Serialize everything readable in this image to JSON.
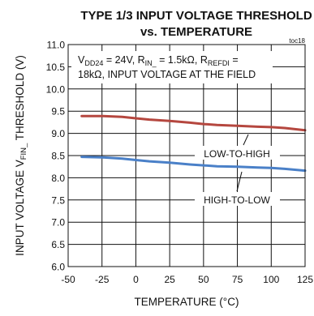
{
  "chart_data": {
    "type": "line",
    "title_line1": "TYPE 1/3 INPUT VOLTAGE THRESHOLD",
    "title_line2": "vs. TEMPERATURE",
    "figure_id": "toc18",
    "annotation": {
      "line1": {
        "v": "V",
        "v_sub": "DD24",
        "mid1": " = 24V, R",
        "r_sub": "IN_",
        "mid2": " = 1.5kΩ, R",
        "rf_sub": "REFDI",
        "end": " ="
      },
      "line2": "18kΩ, INPUT VOLTAGE AT THE FIELD"
    },
    "xlabel": "TEMPERATURE (°C)",
    "ylabel": {
      "pre": "INPUT VOLTAGE V",
      "sub": "FIN_",
      "post": " THRESHOLD (V)"
    },
    "xlim": [
      -50,
      125
    ],
    "ylim": [
      6.0,
      11.0
    ],
    "x_ticks": [
      "-50",
      "-25",
      "0",
      "25",
      "50",
      "75",
      "100",
      "125"
    ],
    "y_ticks": [
      "6.0",
      "6.5",
      "7.0",
      "7.5",
      "8.0",
      "8.5",
      "9.0",
      "9.5",
      "10.0",
      "10.5",
      "11.0"
    ],
    "grid": true,
    "series": [
      {
        "name": "LOW-TO-HIGH",
        "color": "#b5473f",
        "x": [
          -40,
          -25,
          -10,
          0,
          10,
          25,
          40,
          50,
          60,
          75,
          90,
          100,
          110,
          125
        ],
        "y": [
          9.39,
          9.39,
          9.37,
          9.34,
          9.31,
          9.28,
          9.24,
          9.21,
          9.19,
          9.17,
          9.15,
          9.14,
          9.12,
          9.07
        ]
      },
      {
        "name": "HIGH-TO-LOW",
        "color": "#4a80c8",
        "x": [
          -40,
          -25,
          -10,
          0,
          10,
          25,
          40,
          50,
          60,
          75,
          90,
          100,
          110,
          125
        ],
        "y": [
          8.47,
          8.46,
          8.43,
          8.4,
          8.37,
          8.34,
          8.3,
          8.28,
          8.26,
          8.25,
          8.23,
          8.22,
          8.2,
          8.16
        ]
      }
    ]
  }
}
